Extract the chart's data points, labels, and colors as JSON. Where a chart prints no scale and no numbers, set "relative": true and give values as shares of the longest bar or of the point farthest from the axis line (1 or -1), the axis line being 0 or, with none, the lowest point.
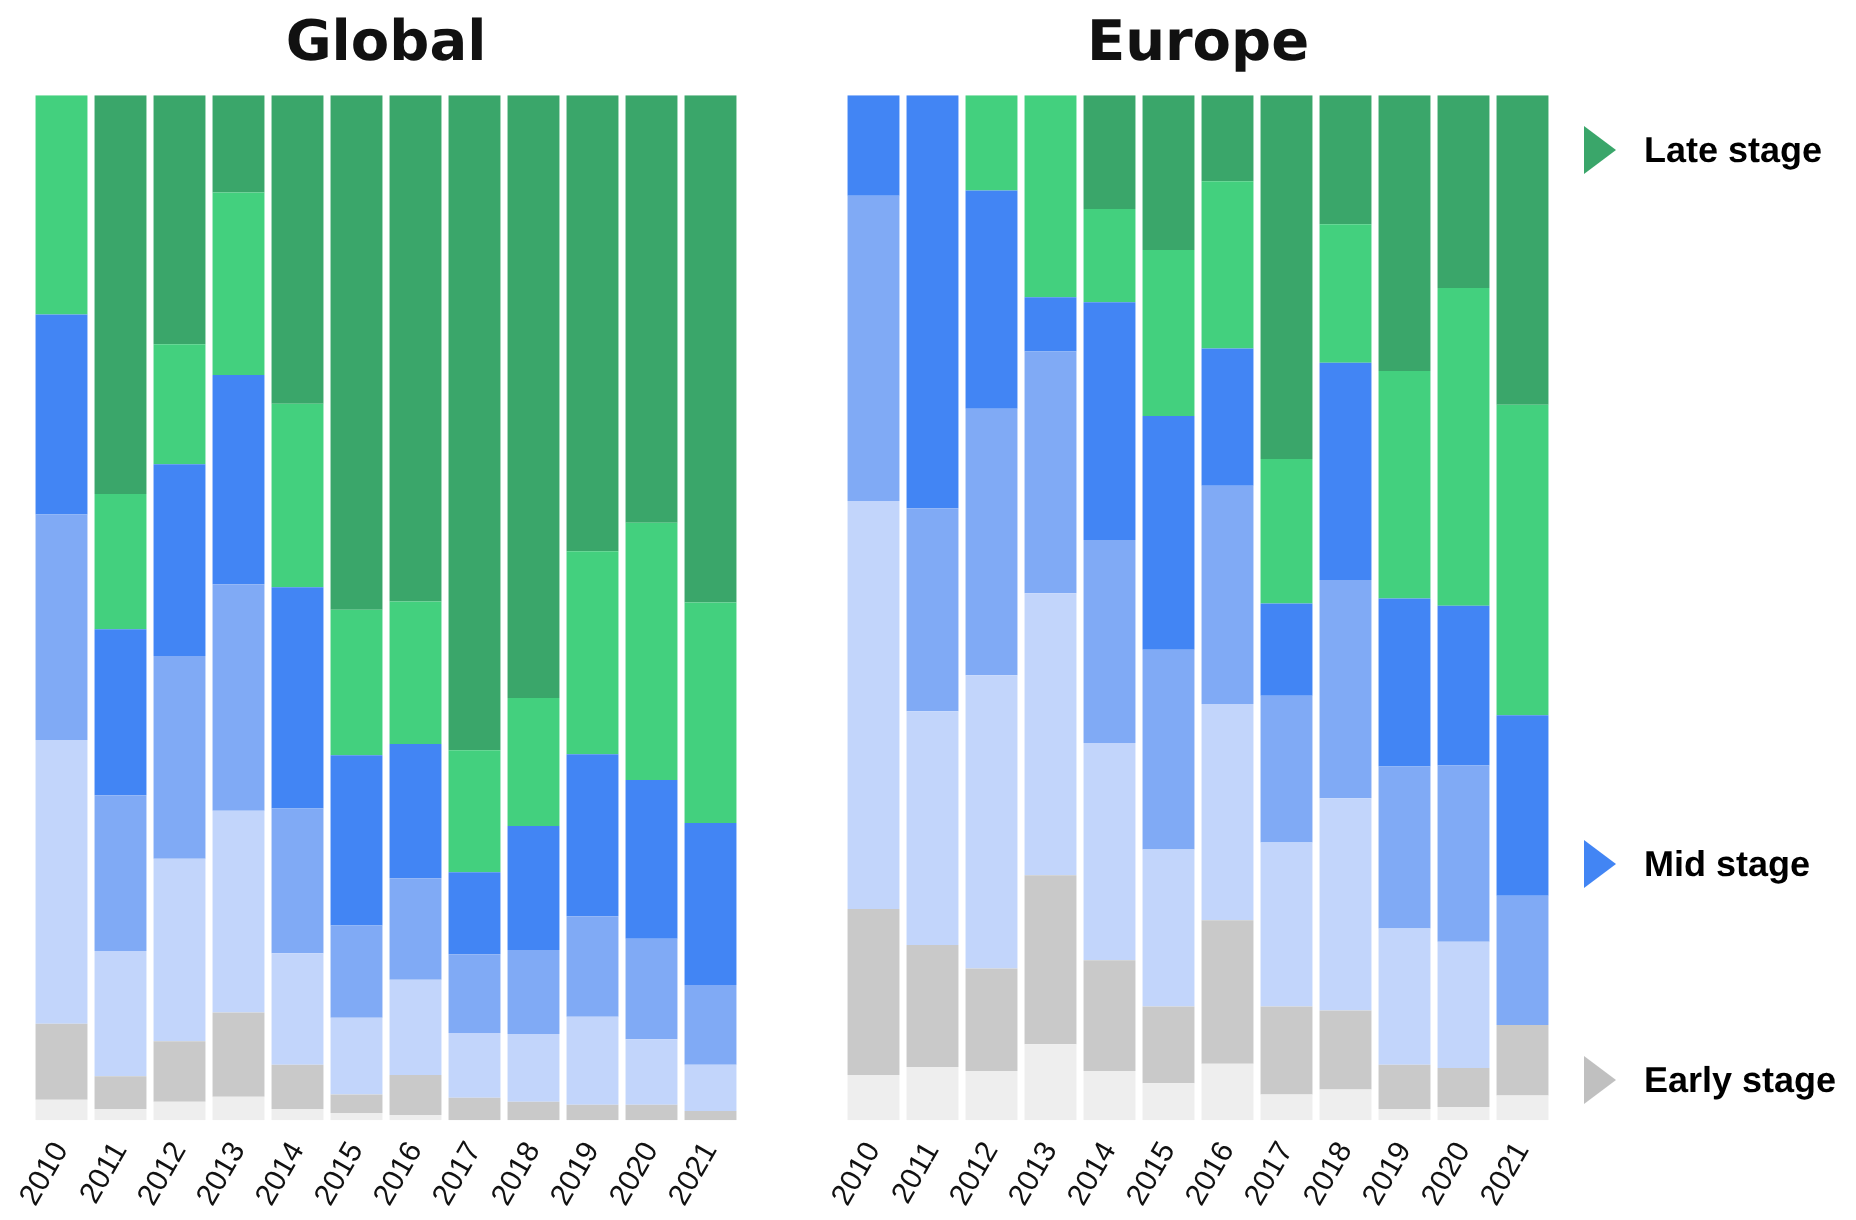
{
  "chart_data": [
    {
      "type": "bar",
      "title": "Global",
      "stacked": true,
      "relative": true,
      "categories": [
        "2010",
        "2011",
        "2012",
        "2013",
        "2014",
        "2015",
        "2016",
        "2017",
        "2018",
        "2019",
        "2020",
        "2021"
      ],
      "series": [
        {
          "color": "#eeeeee",
          "values": [
            0.02,
            0.011,
            0.018,
            0.023,
            0.011,
            0.007,
            0.005,
            0,
            0,
            0,
            0,
            0
          ]
        },
        {
          "color": "#c9c9c9",
          "values": [
            0.074,
            0.032,
            0.059,
            0.082,
            0.043,
            0.018,
            0.039,
            0.022,
            0.018,
            0.015,
            0.015,
            0.009
          ]
        },
        {
          "color": "#c2d5fb",
          "values": [
            0.277,
            0.122,
            0.178,
            0.197,
            0.109,
            0.075,
            0.093,
            0.063,
            0.066,
            0.086,
            0.064,
            0.045
          ]
        },
        {
          "color": "#80aaf5",
          "values": [
            0.22,
            0.152,
            0.198,
            0.221,
            0.141,
            0.09,
            0.099,
            0.077,
            0.082,
            0.098,
            0.098,
            0.078
          ]
        },
        {
          "color": "#4285f4",
          "values": [
            0.195,
            0.162,
            0.187,
            0.204,
            0.216,
            0.166,
            0.131,
            0.08,
            0.121,
            0.158,
            0.155,
            0.158
          ]
        },
        {
          "color": "#43d07e",
          "values": [
            0.214,
            0.132,
            0.117,
            0.178,
            0.179,
            0.142,
            0.139,
            0.119,
            0.125,
            0.198,
            0.251,
            0.215
          ]
        },
        {
          "color": "#3aa66a",
          "values": [
            0,
            0.389,
            0.243,
            0.095,
            0.301,
            0.502,
            0.494,
            0.639,
            0.588,
            0.445,
            0.417,
            0.495
          ]
        }
      ]
    },
    {
      "type": "bar",
      "title": "Europe",
      "stacked": true,
      "relative": true,
      "categories": [
        "2010",
        "2011",
        "2012",
        "2013",
        "2014",
        "2015",
        "2016",
        "2017",
        "2018",
        "2019",
        "2020",
        "2021"
      ],
      "series": [
        {
          "color": "#eeeeee",
          "values": [
            0.044,
            0.052,
            0.048,
            0.074,
            0.048,
            0.036,
            0.055,
            0.025,
            0.03,
            0.011,
            0.013,
            0.024
          ]
        },
        {
          "color": "#c9c9c9",
          "values": [
            0.162,
            0.119,
            0.1,
            0.165,
            0.108,
            0.075,
            0.14,
            0.086,
            0.077,
            0.043,
            0.038,
            0.069
          ]
        },
        {
          "color": "#c2d5fb",
          "values": [
            0.398,
            0.228,
            0.286,
            0.275,
            0.212,
            0.153,
            0.211,
            0.16,
            0.207,
            0.133,
            0.123,
            0
          ]
        },
        {
          "color": "#80aaf5",
          "values": [
            0.298,
            0.198,
            0.26,
            0.236,
            0.198,
            0.195,
            0.213,
            0.143,
            0.213,
            0.158,
            0.172,
            0.126
          ]
        },
        {
          "color": "#4285f4",
          "values": [
            0.098,
            0.403,
            0.213,
            0.053,
            0.232,
            0.228,
            0.134,
            0.09,
            0.212,
            0.164,
            0.156,
            0.176
          ]
        },
        {
          "color": "#43d07e",
          "values": [
            0,
            0,
            0.093,
            0.197,
            0.091,
            0.162,
            0.163,
            0.141,
            0.135,
            0.222,
            0.31,
            0.303
          ]
        },
        {
          "color": "#3aa66a",
          "values": [
            0,
            0,
            0,
            0,
            0.111,
            0.151,
            0.084,
            0.355,
            0.126,
            0.269,
            0.188,
            0.302
          ]
        }
      ],
      "annotations": [
        "Late stage",
        "Mid stage",
        "Early stage"
      ]
    }
  ]
}
